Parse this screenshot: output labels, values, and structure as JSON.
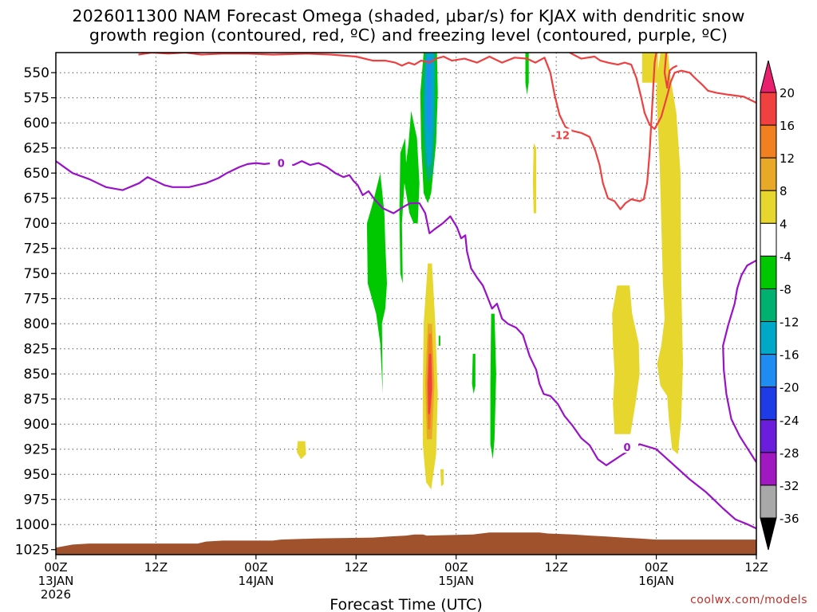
{
  "title_line1": "2026011300 NAM Forecast Omega (shaded, μbar/s) for KJAX with dendritic snow",
  "title_line2": "growth region (contoured, red, ºC) and freezing level (contoured, purple, ºC)",
  "credit": "coolwx.com/models",
  "chart_data": {
    "type": "heatmap",
    "xlabel": "Forecast Time (UTC)",
    "ylabel": "",
    "x_unit": "forecast hour",
    "xlim": [
      0,
      84
    ],
    "ylim": [
      530,
      1030
    ],
    "y_reversed": true,
    "x_ticks": [
      {
        "h": 0,
        "lines": [
          "00Z",
          "13JAN",
          "2026"
        ]
      },
      {
        "h": 12,
        "lines": [
          "12Z"
        ]
      },
      {
        "h": 24,
        "lines": [
          "00Z",
          "14JAN"
        ]
      },
      {
        "h": 36,
        "lines": [
          "12Z"
        ]
      },
      {
        "h": 48,
        "lines": [
          "00Z",
          "15JAN"
        ]
      },
      {
        "h": 60,
        "lines": [
          "12Z"
        ]
      },
      {
        "h": 72,
        "lines": [
          "00Z",
          "16JAN"
        ]
      },
      {
        "h": 84,
        "lines": [
          "12Z"
        ]
      }
    ],
    "y_ticks": [
      550,
      575,
      600,
      625,
      650,
      675,
      700,
      725,
      750,
      775,
      800,
      825,
      850,
      875,
      900,
      925,
      950,
      975,
      1000,
      1025
    ],
    "colorbar": {
      "labels": [
        "20",
        "16",
        "12",
        "8",
        "4",
        "-4",
        "-8",
        "-12",
        "-16",
        "-20",
        "-24",
        "-28",
        "-32",
        "-36"
      ],
      "colors": [
        "#e8206e",
        "#f04040",
        "#f08020",
        "#e8a828",
        "#e6d62e",
        "#ffffff",
        "#00c800",
        "#00b070",
        "#00a8c8",
        "#1e8cf0",
        "#1e3ce6",
        "#6a1edc",
        "#a018c0",
        "#a8a8a8",
        "#000000"
      ]
    },
    "contours": [
      {
        "value": "-12",
        "color": "#ee4040",
        "label_at": {
          "x": 60.5,
          "p": 612
        }
      },
      {
        "value": "0",
        "color": "#9a12c8",
        "label_at": [
          {
            "x": 27,
            "p": 640
          },
          {
            "x": 68.5,
            "p": 923
          }
        ]
      }
    ],
    "terrain_color": "#a0522d"
  }
}
